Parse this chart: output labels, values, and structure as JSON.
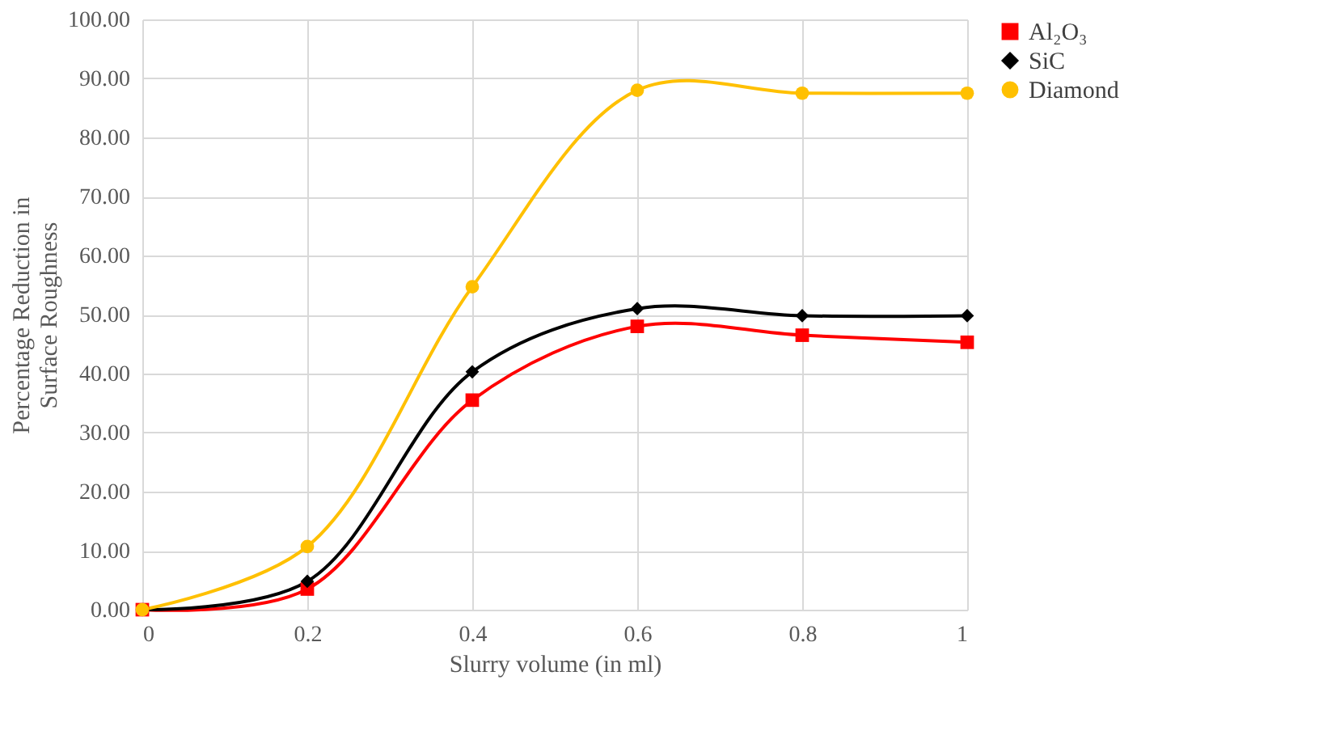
{
  "chart_data": {
    "type": "line",
    "xlabel": "Slurry volume (in ml)",
    "ylabel": "Percentage Reduction in\nSurface Roughness",
    "x": [
      0,
      0.2,
      0.4,
      0.6,
      0.8,
      1
    ],
    "series": [
      {
        "name": "Al₂O₃",
        "color": "#ff0000",
        "marker": "square",
        "values": [
          0,
          3.5,
          35.5,
          48,
          46.5,
          45.3
        ]
      },
      {
        "name": "SiC",
        "color": "#000000",
        "marker": "diamond",
        "values": [
          0,
          4.8,
          40.3,
          51,
          49.8,
          49.8
        ]
      },
      {
        "name": "Diamond",
        "color": "#ffc000",
        "marker": "circle",
        "values": [
          0,
          10.7,
          54.7,
          88,
          87.5,
          87.5
        ]
      }
    ],
    "xlim": [
      0,
      1
    ],
    "xticks": [
      0,
      0.2,
      0.4,
      0.6,
      0.8,
      1
    ],
    "ylim": [
      0,
      100
    ],
    "yticks": [
      {
        "value": 0,
        "label": "0.00"
      },
      {
        "value": 10,
        "label": "10.00"
      },
      {
        "value": 20,
        "label": "20.00"
      },
      {
        "value": 30,
        "label": "30.00"
      },
      {
        "value": 40,
        "label": "40.00"
      },
      {
        "value": 50,
        "label": "50.00"
      },
      {
        "value": 60,
        "label": "60.00"
      },
      {
        "value": 70,
        "label": "70.00"
      },
      {
        "value": 80,
        "label": "80.00"
      },
      {
        "value": 90,
        "label": "90.00"
      },
      {
        "value": 100,
        "label": "100.00"
      }
    ],
    "grid": true,
    "legend": "right",
    "line_style": "solid"
  }
}
